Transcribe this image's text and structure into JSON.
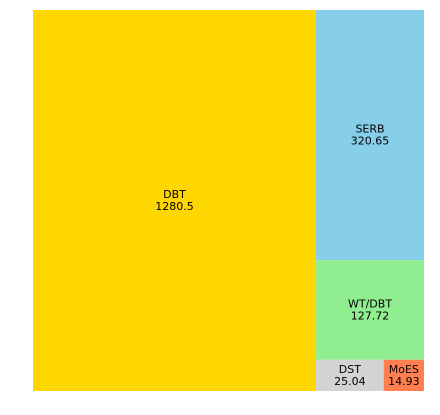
{
  "chart_data": {
    "type": "treemap",
    "title": "",
    "items": [
      {
        "label": "DBT",
        "value": 1280.5,
        "value_text": "1280.5",
        "color": "#ffd700"
      },
      {
        "label": "SERB",
        "value": 320.65,
        "value_text": "320.65",
        "color": "#87ceeb"
      },
      {
        "label": "WT/DBT",
        "value": 127.72,
        "value_text": "127.72",
        "color": "#90ee90"
      },
      {
        "label": "DST",
        "value": 25.04,
        "value_text": "25.04",
        "color": "#d3d3d3"
      },
      {
        "label": "MoES",
        "value": 14.93,
        "value_text": "14.93",
        "color": "#ff7f50"
      }
    ]
  }
}
